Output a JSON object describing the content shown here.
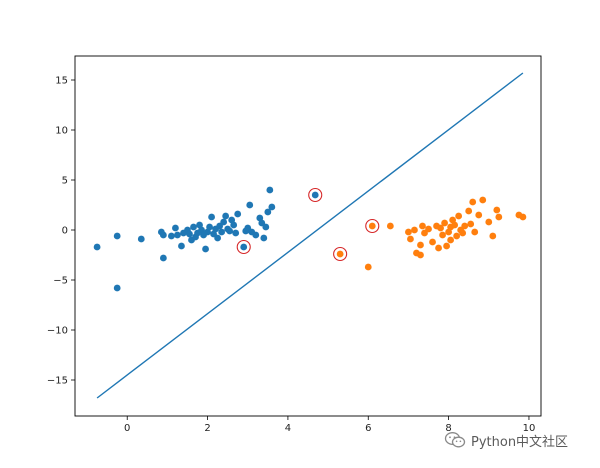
{
  "watermark": {
    "text": "Python中文社区",
    "icon": "wechat-icon"
  },
  "chart_data": {
    "type": "scatter",
    "title": "",
    "xlabel": "",
    "ylabel": "",
    "xlim": [
      -1.3,
      10.3
    ],
    "ylim": [
      -18.6,
      17.4
    ],
    "xticks": [
      0,
      2,
      4,
      6,
      8,
      10
    ],
    "yticks": [
      -15,
      -10,
      -5,
      0,
      5,
      10,
      15
    ],
    "grid": false,
    "legend": "none",
    "colors": {
      "class_a": "#1f77b4",
      "class_b": "#ff7f0e",
      "line": "#1f77b4",
      "highlight": "#d62728"
    },
    "series": [
      {
        "color": "#1f77b4",
        "points": [
          [
            -0.75,
            -1.7
          ],
          [
            -0.25,
            -0.6
          ],
          [
            -0.25,
            -5.8
          ],
          [
            0.35,
            -0.9
          ],
          [
            0.85,
            -0.2
          ],
          [
            0.9,
            -0.5
          ],
          [
            0.9,
            -2.8
          ],
          [
            1.1,
            -0.6
          ],
          [
            1.2,
            0.2
          ],
          [
            1.25,
            -0.5
          ],
          [
            1.35,
            -1.6
          ],
          [
            1.4,
            -0.3
          ],
          [
            1.5,
            0.0
          ],
          [
            1.55,
            -0.4
          ],
          [
            1.6,
            -1.0
          ],
          [
            1.65,
            0.3
          ],
          [
            1.7,
            -0.7
          ],
          [
            1.75,
            -0.3
          ],
          [
            1.8,
            0.5
          ],
          [
            1.85,
            0.0
          ],
          [
            1.9,
            -0.5
          ],
          [
            1.95,
            -1.9
          ],
          [
            2.0,
            -0.2
          ],
          [
            2.05,
            0.3
          ],
          [
            2.1,
            1.3
          ],
          [
            2.15,
            -0.4
          ],
          [
            2.2,
            0.1
          ],
          [
            2.25,
            -0.8
          ],
          [
            2.3,
            0.4
          ],
          [
            2.35,
            -0.2
          ],
          [
            2.4,
            0.8
          ],
          [
            2.45,
            1.4
          ],
          [
            2.5,
            0.1
          ],
          [
            2.55,
            -0.1
          ],
          [
            2.6,
            1.0
          ],
          [
            2.65,
            0.5
          ],
          [
            2.7,
            -0.3
          ],
          [
            2.75,
            1.6
          ],
          [
            2.9,
            -1.7
          ],
          [
            2.95,
            -0.1
          ],
          [
            3.0,
            0.2
          ],
          [
            3.05,
            2.5
          ],
          [
            3.1,
            -0.2
          ],
          [
            3.2,
            -0.5
          ],
          [
            3.3,
            1.2
          ],
          [
            3.35,
            0.7
          ],
          [
            3.4,
            -0.8
          ],
          [
            3.45,
            0.3
          ],
          [
            3.5,
            1.8
          ],
          [
            3.55,
            4.0
          ],
          [
            3.6,
            2.3
          ],
          [
            4.68,
            3.5
          ]
        ]
      },
      {
        "color": "#ff7f0e",
        "points": [
          [
            5.3,
            -2.4
          ],
          [
            6.0,
            -3.7
          ],
          [
            6.1,
            0.4
          ],
          [
            6.55,
            0.4
          ],
          [
            7.0,
            -0.2
          ],
          [
            7.05,
            -0.9
          ],
          [
            7.15,
            0.0
          ],
          [
            7.2,
            -2.3
          ],
          [
            7.3,
            -1.5
          ],
          [
            7.3,
            -2.5
          ],
          [
            7.35,
            0.4
          ],
          [
            7.4,
            -0.3
          ],
          [
            7.5,
            0.1
          ],
          [
            7.6,
            -1.2
          ],
          [
            7.7,
            0.4
          ],
          [
            7.75,
            -1.8
          ],
          [
            7.8,
            0.2
          ],
          [
            7.85,
            -0.5
          ],
          [
            7.9,
            0.7
          ],
          [
            7.95,
            -1.6
          ],
          [
            8.0,
            -0.2
          ],
          [
            8.05,
            0.3
          ],
          [
            8.05,
            -1.0
          ],
          [
            8.1,
            1.0
          ],
          [
            8.15,
            0.5
          ],
          [
            8.2,
            -0.6
          ],
          [
            8.25,
            1.4
          ],
          [
            8.3,
            0.0
          ],
          [
            8.35,
            -0.3
          ],
          [
            8.4,
            0.4
          ],
          [
            8.5,
            1.9
          ],
          [
            8.55,
            0.6
          ],
          [
            8.6,
            2.8
          ],
          [
            8.65,
            -0.2
          ],
          [
            8.75,
            1.5
          ],
          [
            8.85,
            3.0
          ],
          [
            9.0,
            0.8
          ],
          [
            9.1,
            -0.6
          ],
          [
            9.2,
            2.0
          ],
          [
            9.25,
            1.3
          ],
          [
            9.75,
            1.5
          ],
          [
            9.85,
            1.3
          ]
        ]
      }
    ],
    "support_vectors": [
      [
        2.9,
        -1.7
      ],
      [
        4.68,
        3.5
      ],
      [
        5.3,
        -2.4
      ],
      [
        6.1,
        0.4
      ]
    ],
    "decision_line": {
      "x": [
        -0.75,
        9.85
      ],
      "y": [
        -16.8,
        15.7
      ]
    }
  }
}
